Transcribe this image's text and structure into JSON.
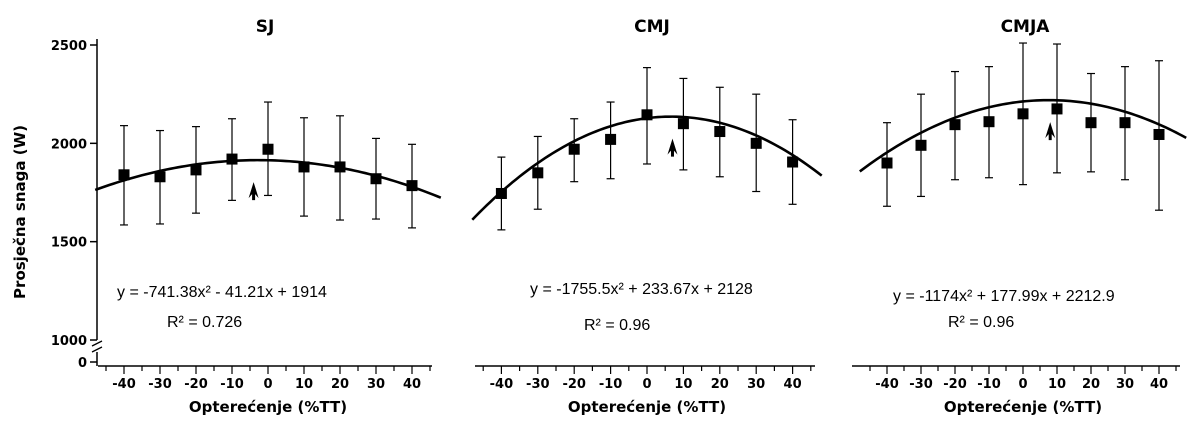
{
  "chart_data": {
    "type": "scatter",
    "y_axis": {
      "label": "Prosječna snaga (W)",
      "ticks": [
        "2500",
        "2000",
        "1500",
        "1000",
        "0"
      ],
      "tick_values": [
        2500,
        2000,
        1500,
        1000
      ],
      "ylim": [
        1000,
        2500
      ],
      "broken": true
    },
    "x_axis": {
      "label": "Opterećenje (%TT)",
      "ticks": [
        "-40",
        "-30",
        "-20",
        "-10",
        "0",
        "10",
        "20",
        "30",
        "40"
      ],
      "tick_values": [
        -40,
        -30,
        -20,
        -10,
        0,
        10,
        20,
        30,
        40
      ],
      "xlim": [
        -48,
        48
      ]
    },
    "grid": false,
    "panels": [
      {
        "title": "SJ",
        "x": [
          -40,
          -30,
          -20,
          -10,
          0,
          10,
          20,
          30,
          40
        ],
        "y": [
          1840,
          1830,
          1865,
          1920,
          1970,
          1880,
          1880,
          1820,
          1785
        ],
        "err_low": [
          1585,
          1590,
          1645,
          1710,
          1735,
          1630,
          1610,
          1615,
          1570
        ],
        "err_high": [
          2090,
          2065,
          2085,
          2125,
          2210,
          2130,
          2140,
          2025,
          1995
        ],
        "fit": {
          "a": -741.38,
          "b": -41.21,
          "c": 1914,
          "x_scale": 100
        },
        "fit_range": [
          -48,
          48
        ],
        "arrow_x": -4,
        "equation": "y = -741.38x² - 41.21x + 1914",
        "r2": "R² = 0.726"
      },
      {
        "title": "CMJ",
        "x": [
          -40,
          -30,
          -20,
          -10,
          0,
          10,
          20,
          30,
          40
        ],
        "y": [
          1745,
          1850,
          1970,
          2020,
          2145,
          2100,
          2060,
          2000,
          1905
        ],
        "err_low": [
          1560,
          1665,
          1805,
          1820,
          1895,
          1865,
          1830,
          1755,
          1690
        ],
        "err_high": [
          1930,
          2035,
          2125,
          2210,
          2385,
          2330,
          2285,
          2250,
          2120
        ],
        "fit": {
          "a": -1755.5,
          "b": 233.67,
          "c": 2128,
          "x_scale": 100
        },
        "fit_range": [
          -48,
          48
        ],
        "arrow_x": 7,
        "equation": "y = -1755.5x² + 233.67x + 2128",
        "r2": "R² = 0.96"
      },
      {
        "title": "CMJA",
        "x": [
          -40,
          -30,
          -20,
          -10,
          0,
          10,
          20,
          30,
          40
        ],
        "y": [
          1900,
          1990,
          2095,
          2110,
          2150,
          2175,
          2105,
          2105,
          2045
        ],
        "err_low": [
          1680,
          1730,
          1815,
          1825,
          1790,
          1850,
          1855,
          1815,
          1660
        ],
        "err_high": [
          2105,
          2250,
          2365,
          2390,
          2510,
          2505,
          2355,
          2390,
          2420
        ],
        "fit": {
          "a": -1174,
          "b": 177.99,
          "c": 2212.9,
          "x_scale": 100
        },
        "fit_range": [
          -48,
          48
        ],
        "arrow_x": 8,
        "equation": "y = -1174x² + 177.99x + 2212.9",
        "r2": "R² = 0.96"
      }
    ]
  }
}
